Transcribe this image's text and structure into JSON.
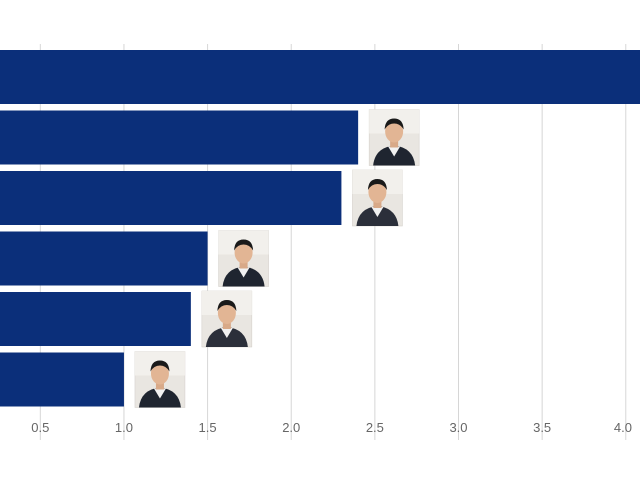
{
  "chart_data": {
    "type": "bar",
    "orientation": "horizontal",
    "bar_color": "#0b2f7a",
    "grid_color": "#d6d6d6",
    "grid": true,
    "xlim": [
      0.259,
      4.085
    ],
    "ticks": [
      {
        "value": 0.5,
        "label": "0.5"
      },
      {
        "value": 1.0,
        "label": "1.0"
      },
      {
        "value": 1.5,
        "label": "1.5"
      },
      {
        "value": 2.0,
        "label": "2.0"
      },
      {
        "value": 2.5,
        "label": "2.5"
      },
      {
        "value": 3.0,
        "label": "3.0"
      },
      {
        "value": 3.5,
        "label": "3.5"
      },
      {
        "value": 4.0,
        "label": "4.0"
      }
    ],
    "bars": [
      {
        "value": 4.1,
        "portrait": false
      },
      {
        "value": 2.4,
        "portrait": true
      },
      {
        "value": 2.3,
        "portrait": true
      },
      {
        "value": 1.5,
        "portrait": true
      },
      {
        "value": 1.4,
        "portrait": true
      },
      {
        "value": 1.0,
        "portrait": true
      }
    ]
  }
}
